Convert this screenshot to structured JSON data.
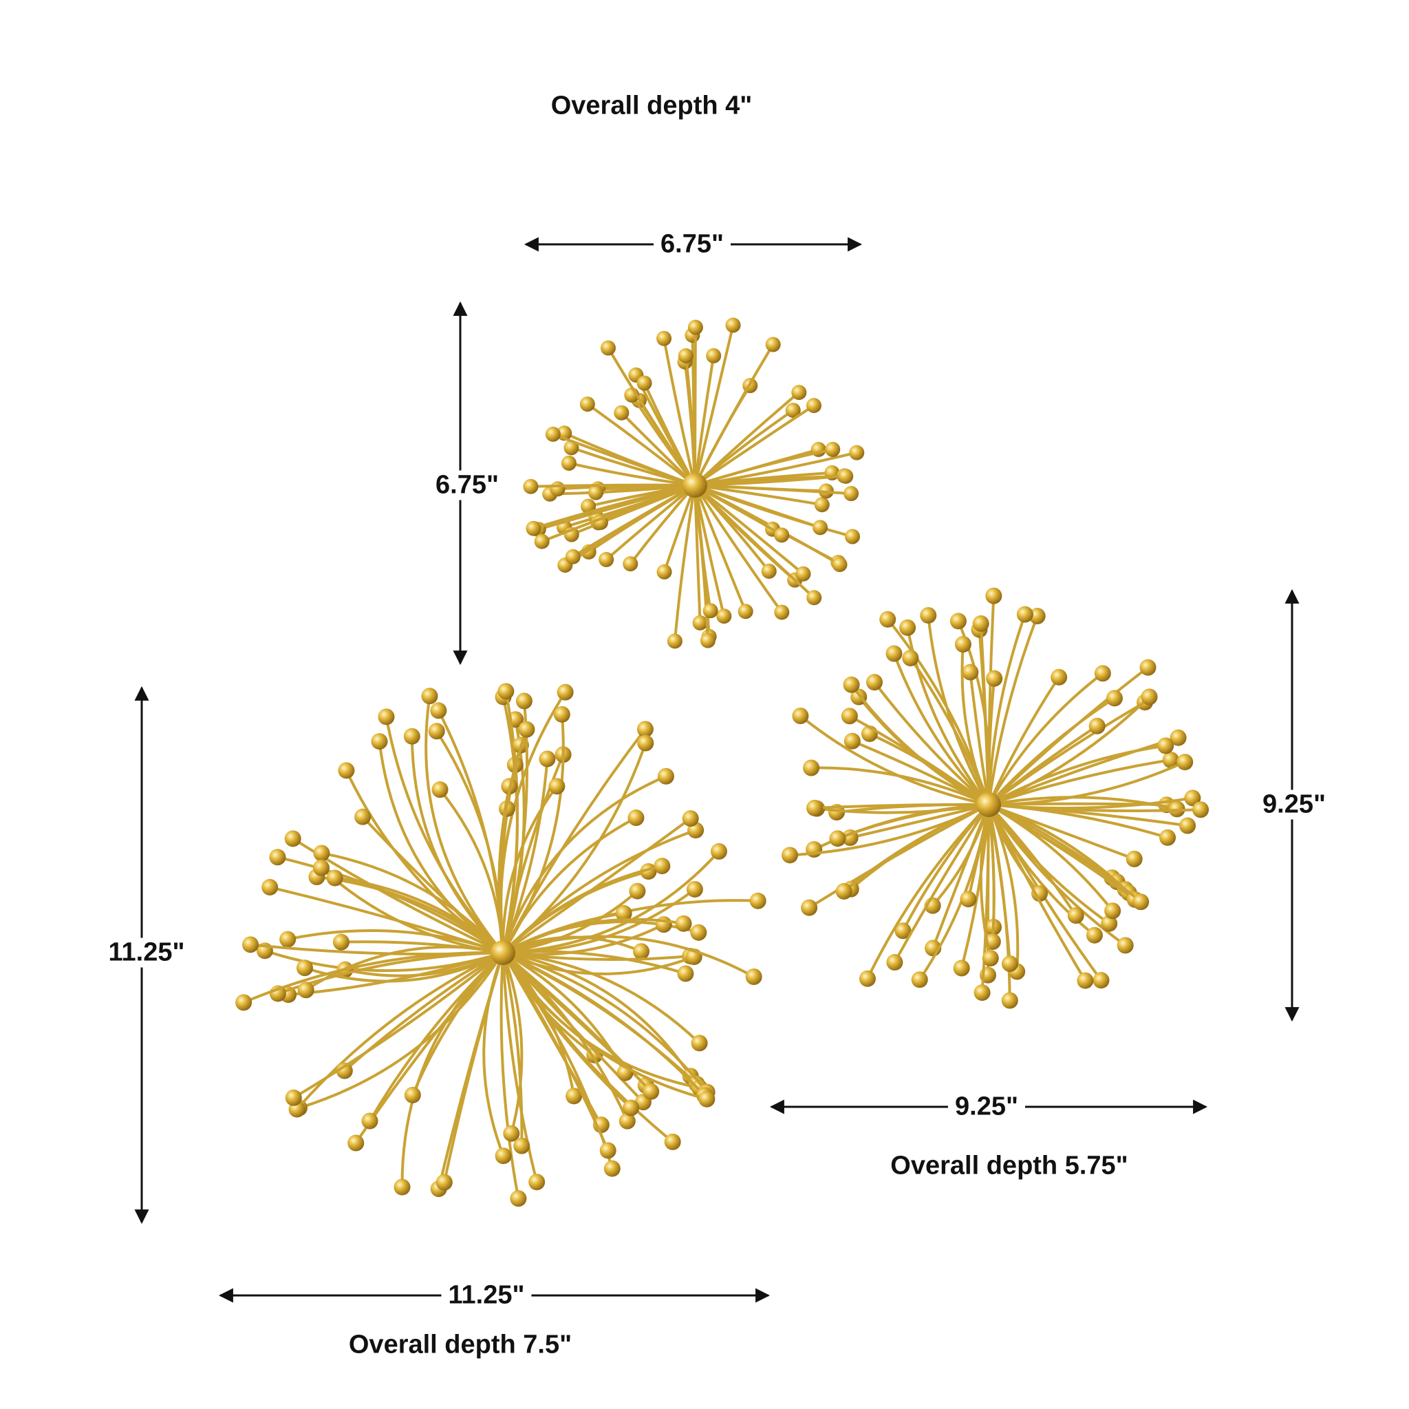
{
  "small": {
    "depth": "Overall depth 4\"",
    "width": "6.75\"",
    "height": "6.75\""
  },
  "medium": {
    "depth": "Overall depth 5.75\"",
    "width": "9.25\"",
    "height": "9.25\""
  },
  "large": {
    "depth": "Overall depth 7.5\"",
    "width": "11.25\"",
    "height": "11.25\""
  },
  "colors": {
    "gold": "#c9a233",
    "ball": "#d9ad2a",
    "text": "#111111"
  }
}
